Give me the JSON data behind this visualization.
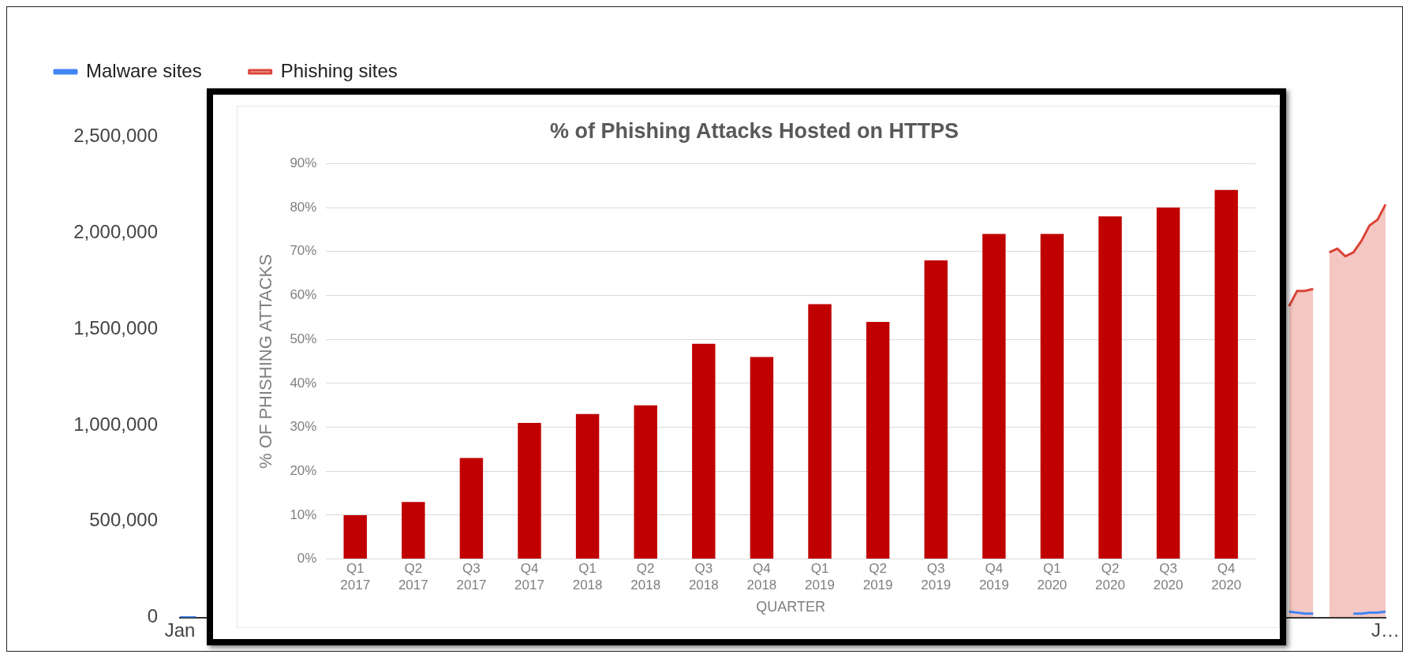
{
  "chart_data": [
    {
      "type": "area",
      "categories": [
        "Jan",
        null,
        null,
        null,
        null,
        null,
        null,
        null,
        null,
        null,
        null,
        null,
        null,
        null,
        null,
        null,
        null,
        null,
        null,
        null,
        null,
        null,
        null,
        null,
        null,
        null,
        null,
        null,
        null,
        null,
        null,
        null,
        null,
        null,
        null,
        null,
        null,
        null,
        null,
        null,
        null,
        null,
        null,
        null,
        null,
        null,
        null,
        null,
        null,
        null,
        null,
        null,
        null,
        null,
        null,
        null,
        null,
        null,
        null,
        null,
        null,
        null,
        null,
        null,
        null,
        null,
        null,
        null,
        null,
        null,
        null,
        null,
        null,
        null,
        null,
        null,
        null,
        null,
        null,
        null,
        null,
        null,
        null,
        null,
        null,
        null,
        null,
        null,
        null,
        null,
        null,
        null,
        null,
        null,
        null,
        null,
        null,
        null,
        null,
        null,
        null,
        null,
        null,
        null,
        null,
        null,
        null,
        null,
        null,
        null,
        null,
        null,
        null,
        null,
        null,
        null,
        null,
        null,
        null,
        null,
        null,
        null,
        null,
        null,
        null,
        null,
        null,
        null,
        null,
        null,
        null,
        null,
        null,
        null,
        null,
        null,
        null,
        null,
        null,
        null,
        null,
        null,
        null,
        null,
        null,
        null,
        null,
        null,
        null,
        null,
        "J…"
      ],
      "series": [
        {
          "name": "Malware sites",
          "type": "line",
          "color": "#4285f4",
          "values": [
            0,
            0,
            0,
            null,
            null,
            null,
            null,
            null,
            null,
            null,
            null,
            null,
            null,
            null,
            null,
            null,
            null,
            null,
            null,
            null,
            null,
            null,
            null,
            null,
            null,
            null,
            null,
            null,
            null,
            null,
            null,
            null,
            null,
            null,
            null,
            null,
            null,
            null,
            null,
            null,
            null,
            null,
            null,
            null,
            null,
            null,
            null,
            null,
            null,
            null,
            null,
            null,
            null,
            null,
            null,
            null,
            null,
            null,
            null,
            null,
            null,
            null,
            null,
            null,
            null,
            null,
            null,
            null,
            null,
            null,
            null,
            null,
            null,
            null,
            null,
            null,
            null,
            null,
            null,
            null,
            null,
            null,
            null,
            null,
            null,
            null,
            null,
            null,
            null,
            null,
            null,
            null,
            null,
            null,
            null,
            null,
            null,
            null,
            null,
            null,
            null,
            null,
            null,
            null,
            null,
            null,
            null,
            null,
            null,
            null,
            null,
            null,
            null,
            null,
            null,
            null,
            null,
            null,
            null,
            null,
            null,
            null,
            null,
            null,
            null,
            null,
            null,
            null,
            null,
            null,
            null,
            null,
            null,
            null,
            null,
            null,
            null,
            null,
            30000,
            25000,
            20000,
            20000,
            null,
            null,
            null,
            null,
            20000,
            20000,
            25000,
            25000,
            30000
          ]
        },
        {
          "name": "Phishing sites",
          "color": "#db4437",
          "values": [
            null,
            null,
            null,
            null,
            null,
            null,
            null,
            null,
            null,
            null,
            null,
            null,
            null,
            null,
            null,
            null,
            null,
            null,
            null,
            null,
            null,
            null,
            null,
            null,
            null,
            null,
            null,
            null,
            null,
            null,
            null,
            null,
            null,
            null,
            null,
            null,
            null,
            null,
            null,
            null,
            null,
            null,
            null,
            null,
            null,
            null,
            null,
            null,
            null,
            null,
            null,
            null,
            null,
            null,
            null,
            null,
            null,
            null,
            null,
            null,
            null,
            null,
            null,
            null,
            null,
            null,
            null,
            null,
            null,
            null,
            null,
            null,
            null,
            null,
            null,
            null,
            null,
            null,
            null,
            null,
            null,
            null,
            null,
            null,
            null,
            null,
            null,
            null,
            null,
            null,
            null,
            null,
            null,
            null,
            null,
            null,
            null,
            null,
            null,
            null,
            null,
            null,
            null,
            null,
            null,
            null,
            null,
            null,
            null,
            null,
            null,
            null,
            null,
            null,
            null,
            null,
            null,
            null,
            null,
            null,
            null,
            null,
            null,
            null,
            null,
            null,
            null,
            null,
            null,
            null,
            null,
            null,
            null,
            null,
            null,
            null,
            null,
            null,
            1620000,
            1700000,
            1700000,
            1710000,
            null,
            1900000,
            1920000,
            1880000,
            1900000,
            1960000,
            2040000,
            2070000,
            2150000
          ]
        }
      ],
      "ylim": [
        0,
        2750000
      ],
      "yticks": [
        {
          "value": 0,
          "label": "0"
        },
        {
          "value": 500000,
          "label": "500,000"
        },
        {
          "value": 1000000,
          "label": "1,000,000"
        },
        {
          "value": 1500000,
          "label": "1,500,000"
        },
        {
          "value": 2000000,
          "label": "2,000,000"
        },
        {
          "value": 2500000,
          "label": "2,500,000"
        }
      ],
      "legend": "top left"
    },
    {
      "type": "bar",
      "title": "% of Phishing Attacks Hosted on HTTPS",
      "xlabel": "QUARTER",
      "ylabel": "% OF PHISHING ATTACKS",
      "categories": [
        "Q1 2017",
        "Q2 2017",
        "Q3 2017",
        "Q4 2017",
        "Q1 2018",
        "Q2 2018",
        "Q3 2018",
        "Q4 2018",
        "Q1 2019",
        "Q2 2019",
        "Q3 2019",
        "Q4 2019",
        "Q1 2020",
        "Q2 2020",
        "Q3 2020",
        "Q4 2020"
      ],
      "values": [
        10,
        13,
        23,
        31,
        33,
        35,
        49,
        46,
        58,
        54,
        68,
        74,
        74,
        78,
        80,
        84
      ],
      "color": "#c00000",
      "ylim": [
        0,
        90
      ],
      "yticks": [
        {
          "value": 0,
          "label": "0%"
        },
        {
          "value": 10,
          "label": "10%"
        },
        {
          "value": 20,
          "label": "20%"
        },
        {
          "value": 30,
          "label": "30%"
        },
        {
          "value": 40,
          "label": "40%"
        },
        {
          "value": 50,
          "label": "50%"
        },
        {
          "value": 60,
          "label": "60%"
        },
        {
          "value": 70,
          "label": "70%"
        },
        {
          "value": 80,
          "label": "80%"
        },
        {
          "value": 90,
          "label": "90%"
        }
      ],
      "grid": "y"
    }
  ]
}
